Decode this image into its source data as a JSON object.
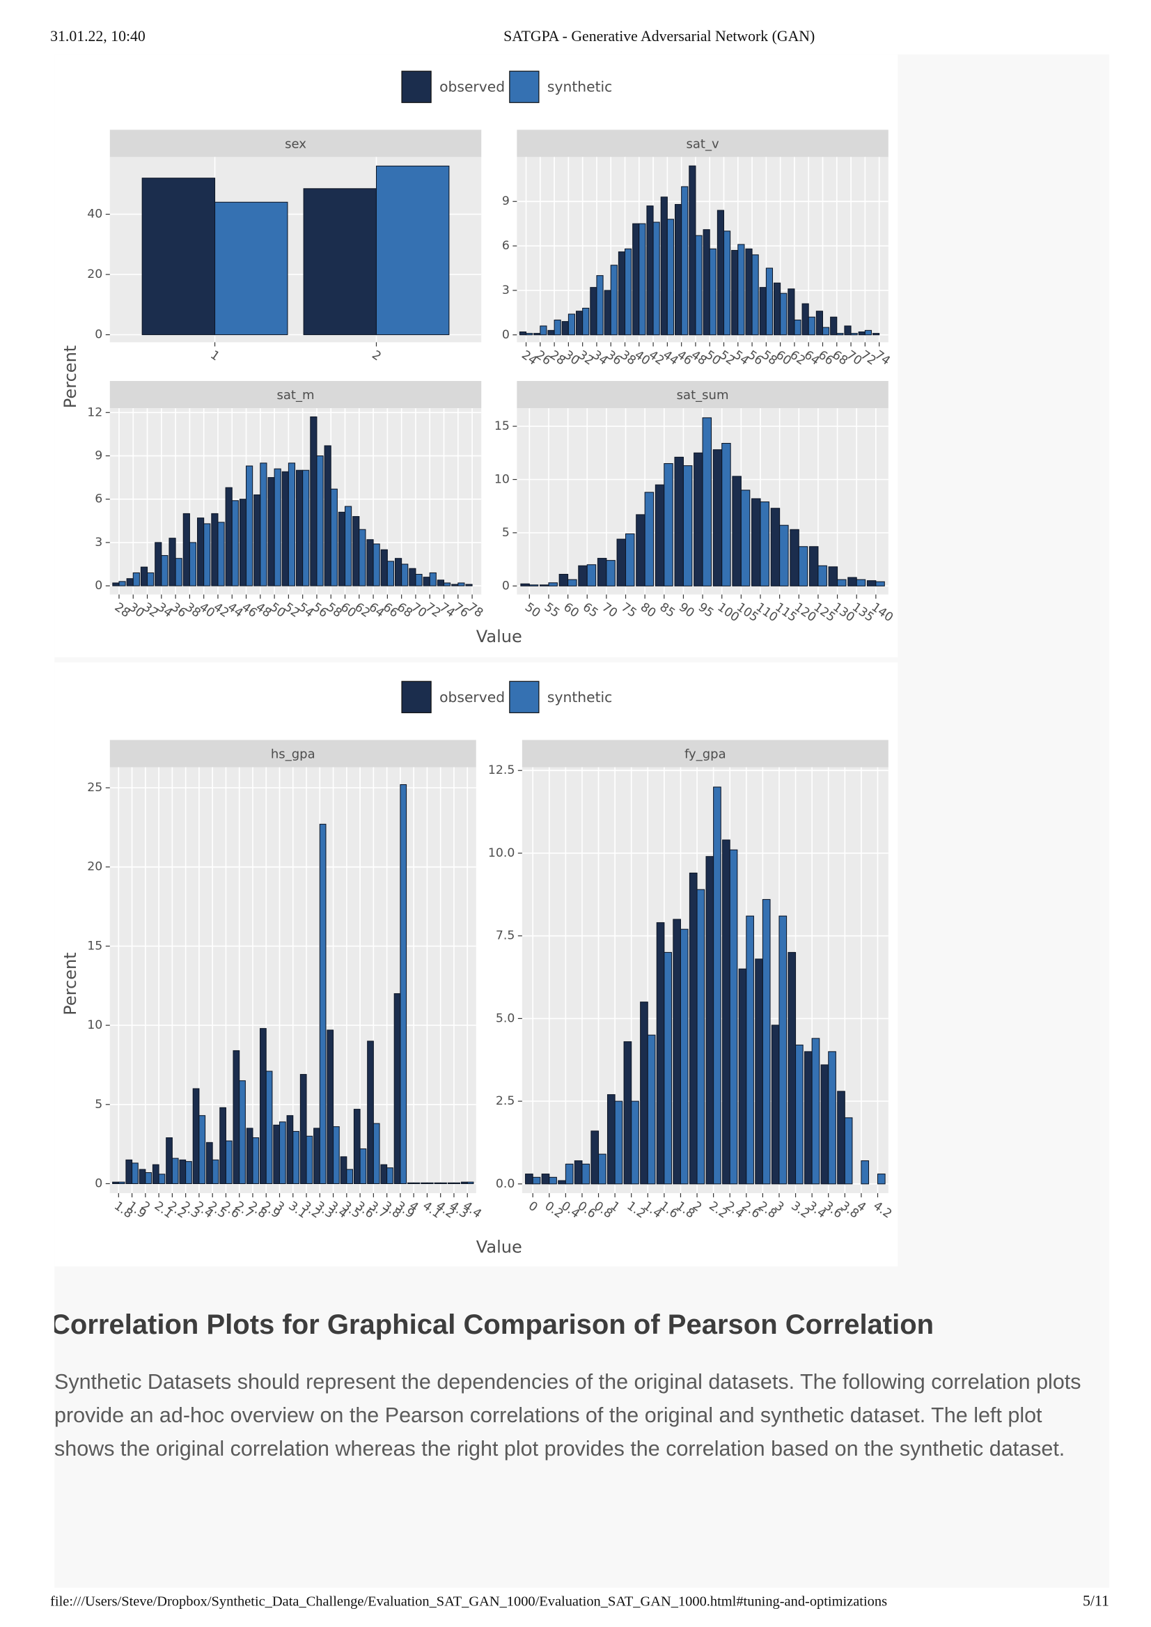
{
  "header": {
    "datetime": "31.01.22, 10:40",
    "title": "SATGPA - Generative Adversarial Network (GAN)"
  },
  "chart_data": [
    {
      "type": "facet-bar",
      "xlabel": "Value",
      "ylabel": "Percent",
      "legend": [
        {
          "name": "observed",
          "color": "#1b2d4d"
        },
        {
          "name": "synthetic",
          "color": "#3571b2"
        }
      ],
      "facets": [
        {
          "title": "sex",
          "categories": [
            1,
            2
          ],
          "series": [
            {
              "values": [
                52,
                48.5
              ]
            },
            {
              "values": [
                44,
                56
              ]
            }
          ],
          "ylim": [
            -2.5,
            59
          ],
          "yticks": [
            0,
            20,
            40
          ]
        },
        {
          "title": "sat_v",
          "categories": [
            24,
            26,
            28,
            30,
            32,
            34,
            36,
            38,
            40,
            42,
            44,
            46,
            48,
            50,
            52,
            54,
            56,
            58,
            60,
            62,
            64,
            66,
            68,
            70,
            72,
            74
          ],
          "series": [
            {
              "values": [
                0.2,
                0.1,
                0.3,
                0.9,
                1.6,
                3.2,
                3.0,
                5.6,
                7.5,
                8.7,
                9.3,
                8.8,
                11.4,
                7.1,
                8.4,
                5.7,
                5.8,
                3.2,
                3.5,
                3.1,
                2.1,
                1.6,
                1.2,
                0.6,
                0.2,
                0.1
              ]
            },
            {
              "values": [
                0.1,
                0.6,
                1.0,
                1.4,
                1.8,
                4.0,
                4.7,
                5.8,
                7.5,
                7.6,
                7.8,
                10.0,
                6.7,
                5.8,
                7.0,
                6.1,
                5.4,
                4.5,
                2.8,
                1.0,
                1.2,
                0.5,
                0.1,
                0.1,
                0.3,
                0
              ]
            }
          ],
          "ylim": [
            -0.5,
            12
          ],
          "yticks": [
            0,
            3,
            6,
            9
          ]
        },
        {
          "title": "sat_m",
          "categories": [
            28,
            30,
            32,
            34,
            36,
            38,
            40,
            42,
            44,
            46,
            48,
            50,
            52,
            54,
            56,
            58,
            60,
            62,
            64,
            66,
            68,
            70,
            72,
            74,
            76,
            78
          ],
          "series": [
            {
              "values": [
                0.2,
                0.5,
                1.3,
                3.0,
                3.3,
                5.0,
                4.7,
                5.0,
                6.8,
                6.0,
                6.3,
                7.5,
                7.9,
                8.0,
                11.7,
                9.7,
                5.1,
                4.8,
                3.2,
                2.5,
                1.9,
                1.2,
                0.6,
                0.4,
                0.1,
                0.1
              ]
            },
            {
              "values": [
                0.3,
                0.9,
                0.9,
                2.1,
                1.9,
                3.0,
                4.3,
                4.4,
                5.9,
                8.3,
                8.5,
                8.1,
                8.5,
                8.0,
                9.0,
                6.7,
                5.5,
                3.9,
                2.9,
                1.7,
                1.5,
                0.8,
                0.9,
                0.2,
                0.2,
                0
              ]
            }
          ],
          "ylim": [
            -0.6,
            12.3
          ],
          "yticks": [
            0,
            3,
            6,
            9,
            12
          ]
        },
        {
          "title": "sat_sum",
          "categories": [
            50,
            55,
            60,
            65,
            70,
            75,
            80,
            85,
            90,
            95,
            100,
            105,
            110,
            115,
            120,
            125,
            130,
            135,
            140
          ],
          "series": [
            {
              "values": [
                0.2,
                0.1,
                1.1,
                1.9,
                2.6,
                4.4,
                6.7,
                9.5,
                12.1,
                12.5,
                12.8,
                10.3,
                8.2,
                7.3,
                5.3,
                3.7,
                1.8,
                0.8,
                0.5
              ]
            },
            {
              "values": [
                0.1,
                0.3,
                0.6,
                2.0,
                2.4,
                4.9,
                8.8,
                11.5,
                11.3,
                15.8,
                13.4,
                9.0,
                7.9,
                5.7,
                3.7,
                1.9,
                0.6,
                0.6,
                0.4
              ]
            }
          ],
          "ylim": [
            -0.8,
            16.7
          ],
          "yticks": [
            0,
            5,
            10,
            15
          ]
        }
      ]
    },
    {
      "type": "facet-bar",
      "xlabel": "Value",
      "ylabel": "Percent",
      "legend": [
        {
          "name": "observed",
          "color": "#1b2d4d"
        },
        {
          "name": "synthetic",
          "color": "#3571b2"
        }
      ],
      "facets": [
        {
          "title": "hs_gpa",
          "categories": [
            1.8,
            1.9,
            2,
            2.1,
            2.2,
            2.3,
            2.4,
            2.5,
            2.6,
            2.7,
            2.8,
            2.9,
            3,
            3.1,
            3.2,
            3.3,
            3.4,
            3.5,
            3.6,
            3.7,
            3.8,
            3.9,
            4,
            4.1,
            4.2,
            4.3,
            4.4
          ],
          "series": [
            {
              "values": [
                0.1,
                1.5,
                0.9,
                1.2,
                2.9,
                1.5,
                6.0,
                2.6,
                4.8,
                8.4,
                3.5,
                9.8,
                3.7,
                4.3,
                6.9,
                3.5,
                9.7,
                1.7,
                4.7,
                9.0,
                1.2,
                12.0,
                0.05,
                0.05,
                0.05,
                0.05,
                0.1
              ]
            },
            {
              "values": [
                0.1,
                1.3,
                0.7,
                0.6,
                1.6,
                1.4,
                4.3,
                1.5,
                2.7,
                6.5,
                2.9,
                7.1,
                3.9,
                3.3,
                3.0,
                22.7,
                3.6,
                0.9,
                2.2,
                3.8,
                1.0,
                25.2,
                0.05,
                0.05,
                0.05,
                0.05,
                0.1
              ]
            }
          ],
          "ylim": [
            -0.6,
            26.3
          ],
          "yticks": [
            0,
            5,
            10,
            15,
            20,
            25
          ]
        },
        {
          "title": "fy_gpa",
          "categories": [
            0,
            0.2,
            0.4,
            0.6,
            0.8,
            1,
            1.2,
            1.4,
            1.6,
            1.8,
            2,
            2.2,
            2.4,
            2.6,
            2.8,
            3,
            3.2,
            3.4,
            3.6,
            3.8,
            4,
            4.2
          ],
          "series": [
            {
              "values": [
                0.3,
                0.3,
                0.1,
                0.7,
                1.6,
                2.7,
                4.3,
                5.5,
                7.9,
                8.0,
                9.4,
                9.9,
                10.4,
                6.5,
                6.8,
                4.8,
                7.0,
                4.0,
                3.6,
                2.8,
                0,
                0
              ]
            },
            {
              "values": [
                0.2,
                0.2,
                0.6,
                0.6,
                0.9,
                2.5,
                2.5,
                4.5,
                7.0,
                7.7,
                8.9,
                12.0,
                10.1,
                8.1,
                8.6,
                8.1,
                4.2,
                4.4,
                4.0,
                2.0,
                0.7,
                0.3
              ]
            }
          ],
          "ylim": [
            -0.28,
            12.6
          ],
          "yticks": [
            {
              "value": 0,
              "label": "0.0"
            },
            2.5,
            {
              "value": 5,
              "label": "5.0"
            },
            7.5,
            {
              "value": 10,
              "label": "10.0"
            },
            12.5
          ]
        }
      ]
    }
  ],
  "section": {
    "heading": "Correlation Plots for Graphical Comparison of Pearson Correlation",
    "paragraph": "Synthetic Datasets should represent the dependencies of the original datasets. The following correlation plots provide an ad-hoc overview on the Pearson correlations of the original and synthetic dataset. The left plot shows the original correlation whereas the right plot provides the correlation based on the synthetic dataset."
  },
  "footer": {
    "url": "file:///Users/Steve/Dropbox/Synthetic_Data_Challenge/Evaluation_SAT_GAN_1000/Evaluation_SAT_GAN_1000.html#tuning-and-optimizations",
    "page": "5/11"
  }
}
